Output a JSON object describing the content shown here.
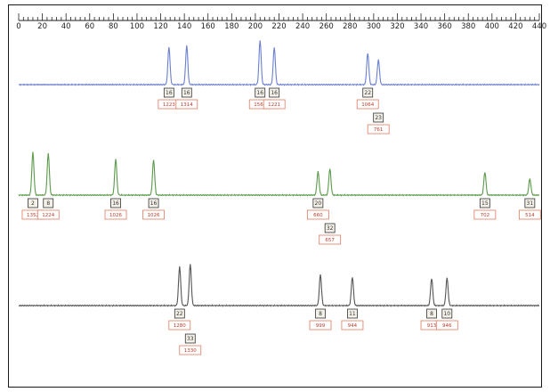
{
  "chart_data": {
    "type": "line",
    "title": "",
    "xlabel": "",
    "ylabel": "",
    "xlim": [
      0,
      440
    ],
    "x_ticks": [
      0,
      20,
      40,
      60,
      80,
      100,
      120,
      140,
      160,
      180,
      200,
      220,
      240,
      260,
      280,
      300,
      320,
      340,
      360,
      380,
      400,
      420,
      440
    ],
    "grid": false,
    "legend": "none",
    "channels": [
      {
        "color": "#6a7fd0",
        "peaks": [
          {
            "x": 127,
            "h": 0.85,
            "allele": "16",
            "height_label": "1223"
          },
          {
            "x": 142,
            "h": 0.88,
            "allele": "16",
            "height_label": "1314"
          },
          {
            "x": 204,
            "h": 1.0,
            "allele": "16",
            "height_label": "1560"
          },
          {
            "x": 216,
            "h": 0.84,
            "allele": "16",
            "height_label": "1221"
          },
          {
            "x": 295,
            "h": 0.71,
            "allele": "22",
            "height_label": "1064"
          },
          {
            "x": 304,
            "h": 0.56,
            "allele": "23",
            "height_label": "761"
          }
        ]
      },
      {
        "color": "#5a9a4a",
        "peaks": [
          {
            "x": 12,
            "h": 1.0,
            "allele": "2",
            "height_label": "1352"
          },
          {
            "x": 25,
            "h": 0.98,
            "allele": "8",
            "height_label": "1224"
          },
          {
            "x": 82,
            "h": 0.85,
            "allele": "16",
            "height_label": "1026"
          },
          {
            "x": 114,
            "h": 0.83,
            "allele": "16",
            "height_label": "1026"
          },
          {
            "x": 253,
            "h": 0.55,
            "allele": "20",
            "height_label": "660"
          },
          {
            "x": 263,
            "h": 0.62,
            "allele": "32",
            "height_label": "657"
          },
          {
            "x": 394,
            "h": 0.54,
            "allele": "15",
            "height_label": "702"
          },
          {
            "x": 432,
            "h": 0.38,
            "allele": "31",
            "height_label": "514"
          }
        ]
      },
      {
        "color": "#555555",
        "peaks": [
          {
            "x": 136,
            "h": 0.92,
            "allele": "22",
            "height_label": "1280"
          },
          {
            "x": 145,
            "h": 0.97,
            "allele": "33",
            "height_label": "1330"
          },
          {
            "x": 255,
            "h": 0.73,
            "allele": "8",
            "height_label": "999"
          },
          {
            "x": 282,
            "h": 0.67,
            "allele": "11",
            "height_label": "944"
          },
          {
            "x": 349,
            "h": 0.64,
            "allele": "8",
            "height_label": "913"
          },
          {
            "x": 362,
            "h": 0.65,
            "allele": "10",
            "height_label": "946"
          }
        ]
      }
    ]
  }
}
